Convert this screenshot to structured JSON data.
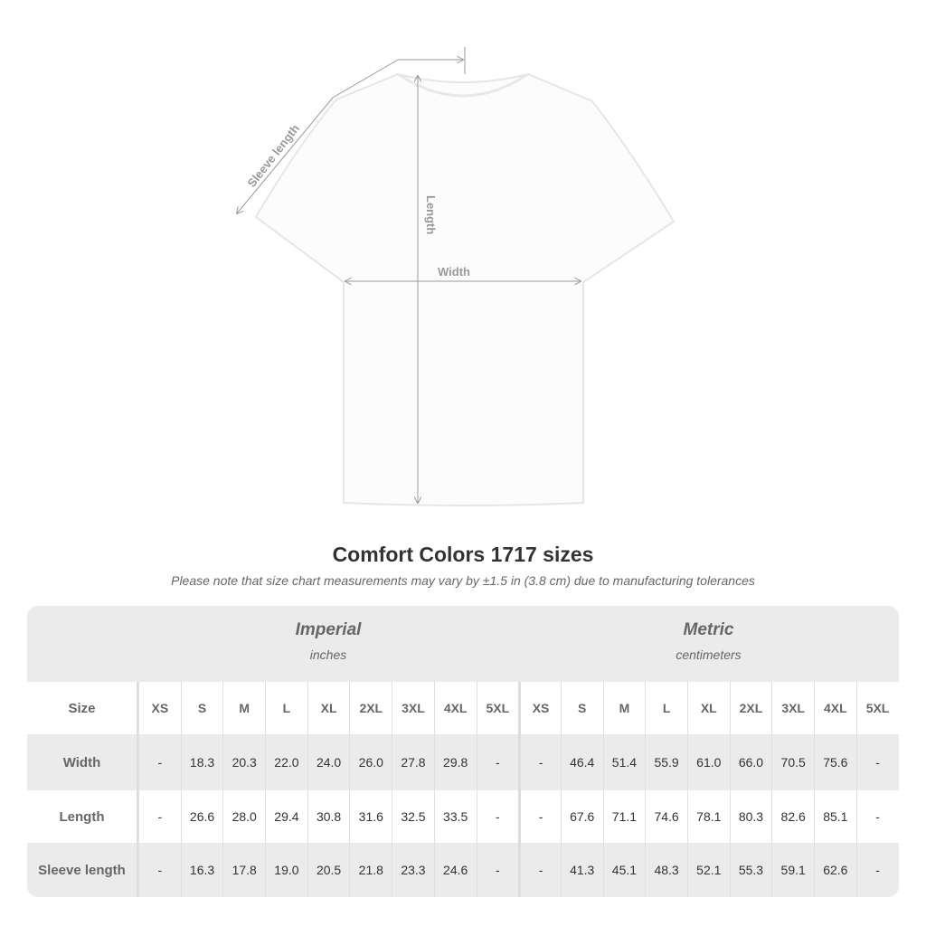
{
  "diagram": {
    "sleeve_label": "Sleeve length",
    "length_label": "Length",
    "width_label": "Width",
    "line_color": "#9a9a9a"
  },
  "title": "Comfort Colors 1717 sizes",
  "note": "Please note that size chart measurements may vary by ±1.5 in (3.8 cm) due to manufacturing tolerances",
  "table": {
    "imperial": {
      "title": "Imperial",
      "unit": "inches"
    },
    "metric": {
      "title": "Metric",
      "unit": "centimeters"
    },
    "size_label": "Size",
    "sizes": [
      "XS",
      "S",
      "M",
      "L",
      "XL",
      "2XL",
      "3XL",
      "4XL",
      "5XL"
    ],
    "rows": [
      {
        "label": "Width",
        "imperial": [
          "-",
          "18.3",
          "20.3",
          "22.0",
          "24.0",
          "26.0",
          "27.8",
          "29.8",
          "-"
        ],
        "metric": [
          "-",
          "46.4",
          "51.4",
          "55.9",
          "61.0",
          "66.0",
          "70.5",
          "75.6",
          "-"
        ]
      },
      {
        "label": "Length",
        "imperial": [
          "-",
          "26.6",
          "28.0",
          "29.4",
          "30.8",
          "31.6",
          "32.5",
          "33.5",
          "-"
        ],
        "metric": [
          "-",
          "67.6",
          "71.1",
          "74.6",
          "78.1",
          "80.3",
          "82.6",
          "85.1",
          "-"
        ]
      },
      {
        "label": "Sleeve length",
        "imperial": [
          "-",
          "16.3",
          "17.8",
          "19.0",
          "20.5",
          "21.8",
          "23.3",
          "24.6",
          "-"
        ],
        "metric": [
          "-",
          "41.3",
          "45.1",
          "48.3",
          "52.1",
          "55.3",
          "59.1",
          "62.6",
          "-"
        ]
      }
    ],
    "colors": {
      "header_bg": "#ebebeb",
      "stripe_bg": "#ebebeb"
    }
  }
}
